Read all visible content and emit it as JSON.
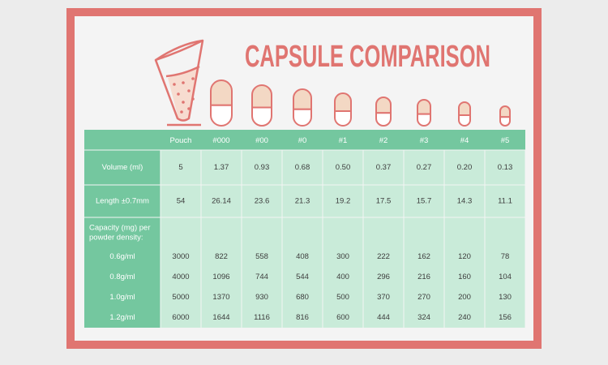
{
  "title": "CAPSULE COMPARISON",
  "table": {
    "columns": [
      "Pouch",
      "#000",
      "#00",
      "#0",
      "#1",
      "#2",
      "#3",
      "#4",
      "#5"
    ],
    "rows": [
      {
        "label": "Volume (ml)",
        "values": [
          "5",
          "1.37",
          "0.93",
          "0.68",
          "0.50",
          "0.37",
          "0.27",
          "0.20",
          "0.13"
        ]
      },
      {
        "label": "Length ±0.7mm",
        "values": [
          "54",
          "26.14",
          "23.6",
          "21.3",
          "19.2",
          "17.5",
          "15.7",
          "14.3",
          "11.1"
        ]
      }
    ],
    "capacity_label": [
      "Capacity (mg) per",
      "powder density:"
    ],
    "capacity_rows": [
      {
        "label": "0.6g/ml",
        "values": [
          "3000",
          "822",
          "558",
          "408",
          "300",
          "222",
          "162",
          "120",
          "78"
        ]
      },
      {
        "label": "0.8g/ml",
        "values": [
          "4000",
          "1096",
          "744",
          "544",
          "400",
          "296",
          "216",
          "160",
          "104"
        ]
      },
      {
        "label": "1.0g/ml",
        "values": [
          "5000",
          "1370",
          "930",
          "680",
          "500",
          "370",
          "270",
          "200",
          "130"
        ]
      },
      {
        "label": "1.2g/ml",
        "values": [
          "6000",
          "1644",
          "1116",
          "816",
          "600",
          "444",
          "324",
          "240",
          "156"
        ]
      }
    ]
  }
}
